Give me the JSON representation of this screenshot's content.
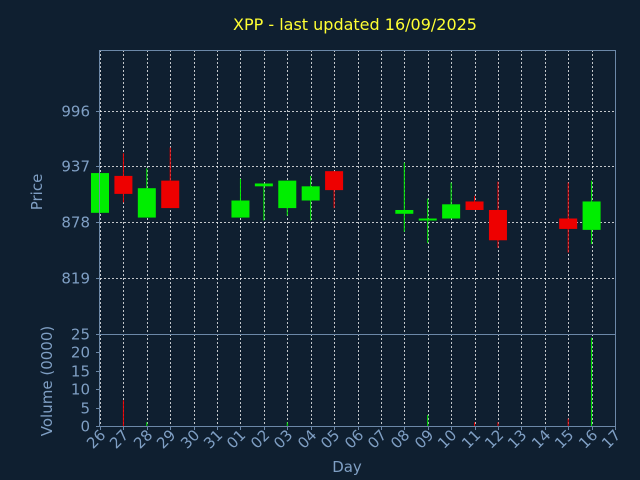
{
  "chart_data": {
    "type": "candlestick",
    "title": "XPP - last updated 16/09/2025",
    "xlabel": "Day",
    "price_panel": {
      "ylabel": "Price",
      "ylim": [
        760,
        1060
      ],
      "yticks": [
        819,
        878,
        937,
        996
      ]
    },
    "volume_panel": {
      "ylabel": "Volume (0000)",
      "ylim": [
        0,
        25
      ],
      "yticks": [
        0,
        5,
        10,
        15,
        20,
        25
      ]
    },
    "x_tick_labels": [
      "26",
      "27",
      "28",
      "29",
      "30",
      "31",
      "01",
      "02",
      "03",
      "04",
      "05",
      "06",
      "07",
      "08",
      "09",
      "10",
      "11",
      "12",
      "13",
      "14",
      "15",
      "16",
      "17"
    ],
    "candles": [
      {
        "day": "26",
        "open": 888,
        "close": 930,
        "high": 930,
        "low": 888,
        "volume": 0
      },
      {
        "day": "27",
        "open": 927,
        "close": 908,
        "high": 951,
        "low": 899,
        "volume": 7
      },
      {
        "day": "28",
        "open": 883,
        "close": 914,
        "high": 935,
        "low": 883,
        "volume": 1
      },
      {
        "day": "29",
        "open": 922,
        "close": 893,
        "high": 957,
        "low": 893,
        "volume": 0
      },
      {
        "day": "01",
        "open": 883,
        "close": 901,
        "high": 924,
        "low": 883,
        "volume": 0
      },
      {
        "day": "02",
        "open": 916,
        "close": 919,
        "high": 919,
        "low": 880,
        "volume": 0
      },
      {
        "day": "03",
        "open": 893,
        "close": 922,
        "high": 922,
        "low": 885,
        "volume": 1
      },
      {
        "day": "04",
        "open": 901,
        "close": 916,
        "high": 927,
        "low": 880,
        "volume": 0
      },
      {
        "day": "05",
        "open": 932,
        "close": 912,
        "high": 932,
        "low": 893,
        "volume": 0
      },
      {
        "day": "08",
        "open": 887,
        "close": 891,
        "high": 941,
        "low": 868,
        "volume": 0
      },
      {
        "day": "09",
        "open": 880,
        "close": 882,
        "high": 903,
        "low": 856,
        "volume": 3
      },
      {
        "day": "10",
        "open": 882,
        "close": 897,
        "high": 920,
        "low": 882,
        "volume": 0
      },
      {
        "day": "11",
        "open": 900,
        "close": 891,
        "high": 906,
        "low": 891,
        "volume": 1
      },
      {
        "day": "12",
        "open": 891,
        "close": 859,
        "high": 921,
        "low": 851,
        "volume": 1
      },
      {
        "day": "15",
        "open": 882,
        "close": 871,
        "high": 920,
        "low": 846,
        "volume": 2
      },
      {
        "day": "16",
        "open": 870,
        "close": 900,
        "high": 922,
        "low": 855,
        "volume": 24
      }
    ],
    "colors": {
      "up": "#00ee00",
      "down": "#ee0000",
      "background": "#0f1f30",
      "title": "#ffff33",
      "labels": "#7f9fc4"
    },
    "grid": true
  }
}
